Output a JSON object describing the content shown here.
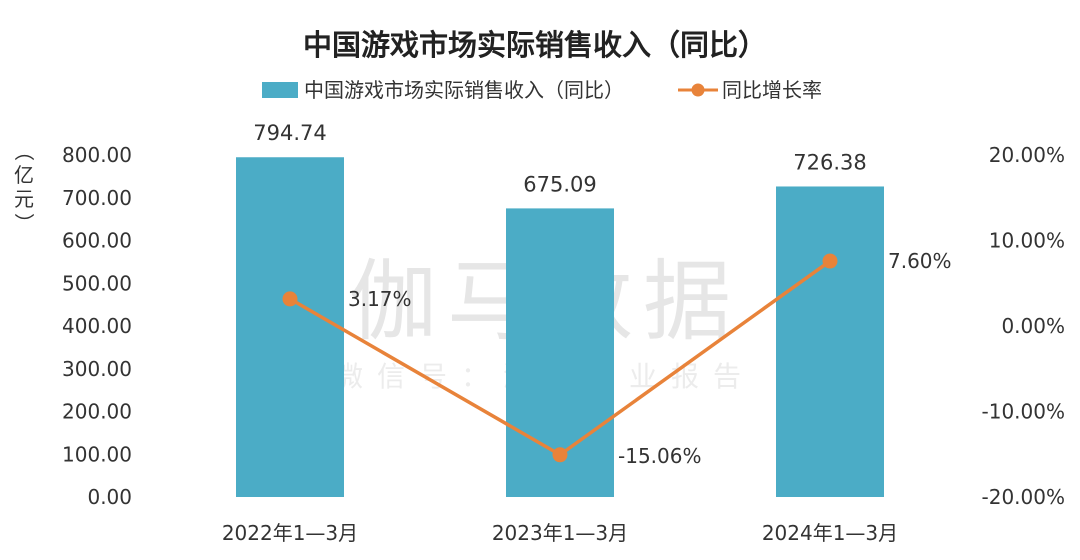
{
  "chart_data": {
    "type": "bar",
    "title": "中国游戏市场实际销售收入（同比）",
    "categories": [
      "2022年1—3月",
      "2023年1—3月",
      "2024年1—3月"
    ],
    "series": [
      {
        "name": "中国游戏市场实际销售收入（同比）",
        "type": "bar",
        "axis": "left",
        "color": "#4BACC6",
        "values": [
          794.74,
          675.09,
          726.38
        ],
        "labels": [
          "794.74",
          "675.09",
          "726.38"
        ]
      },
      {
        "name": "同比增长率",
        "type": "line",
        "axis": "right",
        "color": "#E8833A",
        "values": [
          3.17,
          -15.06,
          7.6
        ],
        "labels": [
          "3.17%",
          "-15.06%",
          "7.60%"
        ]
      }
    ],
    "y_left": {
      "label": "（亿元）",
      "lim": [
        0,
        800
      ],
      "ticks": [
        "0.00",
        "100.00",
        "200.00",
        "300.00",
        "400.00",
        "500.00",
        "600.00",
        "700.00",
        "800.00"
      ]
    },
    "y_right": {
      "lim": [
        -20,
        20
      ],
      "ticks": [
        "-20.00%",
        "-10.00%",
        "0.00%",
        "10.00%",
        "20.00%"
      ]
    },
    "grid": false,
    "legend": "top-center"
  },
  "watermark": {
    "main": "伽马数据",
    "sub": "微信号：游戏产业报告"
  }
}
